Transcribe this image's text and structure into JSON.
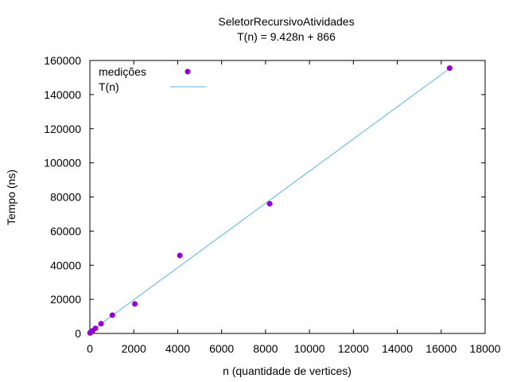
{
  "chart_data": {
    "type": "scatter",
    "title": "SeletorRecursivoAtividades",
    "subtitle": "T(n) = 9.428n + 866",
    "xlabel": "n (quantidade de vertices)",
    "ylabel": "Tempo (ns)",
    "xlim": [
      0,
      18000
    ],
    "ylim": [
      0,
      160000
    ],
    "xticks": [
      0,
      2000,
      4000,
      6000,
      8000,
      10000,
      12000,
      14000,
      16000,
      18000
    ],
    "yticks": [
      0,
      20000,
      40000,
      60000,
      80000,
      100000,
      120000,
      140000,
      160000
    ],
    "grid": false,
    "legend_position": "top-left",
    "series": [
      {
        "name": "medições",
        "kind": "points",
        "color": "#9400d3",
        "x": [
          8,
          16,
          32,
          64,
          128,
          256,
          512,
          1024,
          2048,
          4096,
          8192,
          16384
        ],
        "y": [
          300,
          500,
          700,
          1000,
          1600,
          3000,
          5700,
          10700,
          17300,
          45700,
          76000,
          155500
        ]
      },
      {
        "name": "T(n)",
        "kind": "line",
        "color": "#56b4e9",
        "slope": 9.428,
        "intercept": 866,
        "x_range": [
          0,
          16384
        ]
      }
    ]
  }
}
